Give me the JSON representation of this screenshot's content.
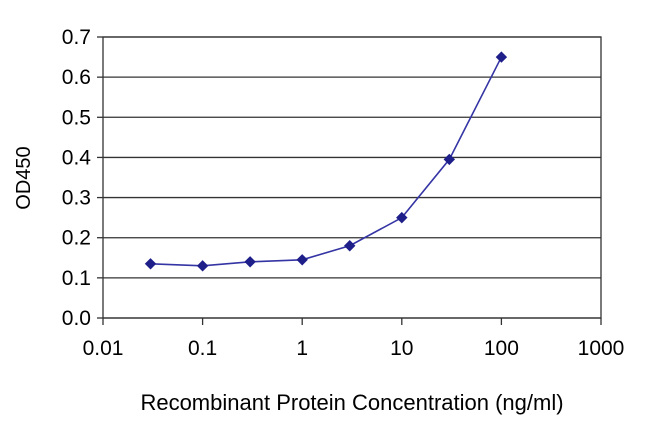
{
  "chart_data": {
    "type": "line",
    "title": "",
    "xlabel": "Recombinant Protein Concentration (ng/ml)",
    "ylabel": "OD450",
    "x_scale": "log",
    "xlim": [
      0.01,
      1000
    ],
    "ylim": [
      0,
      0.7
    ],
    "x_ticks": [
      0.01,
      0.1,
      1,
      10,
      100,
      1000
    ],
    "x_tick_labels": [
      "0.01",
      "0.1",
      "1",
      "10",
      "100",
      "1000"
    ],
    "y_ticks": [
      0,
      0.1,
      0.2,
      0.3,
      0.4,
      0.5,
      0.6,
      0.7
    ],
    "y_tick_labels": [
      "0.0",
      "0.1",
      "0.2",
      "0.3",
      "0.4",
      "0.5",
      "0.6",
      "0.7"
    ],
    "grid": "horizontal",
    "legend": "none",
    "series": [
      {
        "name": "OD450",
        "marker": "diamond",
        "x": [
          0.03,
          0.1,
          0.3,
          1,
          3,
          10,
          30,
          100
        ],
        "y": [
          0.135,
          0.13,
          0.14,
          0.145,
          0.18,
          0.25,
          0.395,
          0.65
        ]
      }
    ],
    "colors": {
      "line": "#3434a4",
      "marker": "#1f1f8a",
      "grid": "#333333",
      "axis": "#333333",
      "text": "#000000",
      "background": "#ffffff"
    }
  }
}
